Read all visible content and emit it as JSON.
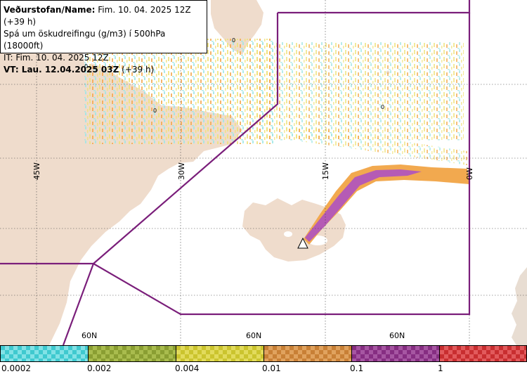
{
  "header": {
    "line1_label": "Veðurstofan/Name:",
    "line1_value": "Fim. 10. 04. 2025 12Z (+39 h)",
    "line2": "Spá um öskudreifingu (g/m3) í 500hPa (18000ft)",
    "line3": "IT: Fim. 10. 04. 2025 12Z",
    "line4_label": "VT: Lau. 12.04.2025 03Z",
    "line4_value": "(+39 h)"
  },
  "map": {
    "longitude_labels": [
      "45W",
      "30W",
      "15W",
      "0W"
    ],
    "latitude_labels": [
      "60N",
      "60N",
      "60N"
    ],
    "contour_zero_label": "0",
    "colors": {
      "land": "#efdccc",
      "land_gray": "#e8ddd2",
      "sea": "#ffffff",
      "boundary": "#7a1e7a",
      "ash_high": "#b55bb5",
      "ash_medium": "#f2a94f",
      "ash_low": "#efe27a",
      "ash_trace": "#9fe6e6",
      "source_marker": "#ffffff"
    }
  },
  "legend": {
    "tick_labels": [
      "0.0002",
      "0.002",
      "0.004",
      "0.01",
      "0.1",
      "1"
    ],
    "bins": [
      {
        "color": "#3fc9cf",
        "alt": "#82e2e6"
      },
      {
        "color": "#8a9e32",
        "alt": "#a9bc4e"
      },
      {
        "color": "#cbc42e",
        "alt": "#e2db5c"
      },
      {
        "color": "#c88036",
        "alt": "#e0a25e"
      },
      {
        "color": "#862e82",
        "alt": "#a656a2"
      },
      {
        "color": "#c82e30",
        "alt": "#e25a5c"
      }
    ]
  }
}
